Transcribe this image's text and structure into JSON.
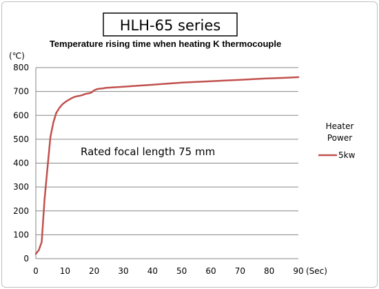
{
  "chart_data": {
    "type": "line",
    "title": "HLH-65 series",
    "subtitle": "Temperature rising time when heating K thermocouple",
    "xlabel": "(Sec)",
    "ylabel": "(℃)",
    "annotation": "Rated focal length 75 mm",
    "legend_title": [
      "Heater",
      "Power"
    ],
    "legend_position": "right",
    "grid": "horizontal",
    "xlim": [
      0,
      90
    ],
    "ylim": [
      0,
      800
    ],
    "xticks": [
      0,
      10,
      20,
      30,
      40,
      50,
      60,
      70,
      80,
      90
    ],
    "yticks": [
      0,
      100,
      200,
      300,
      400,
      500,
      600,
      700,
      800
    ],
    "series": [
      {
        "name": "5kw",
        "color": "#c0504d",
        "x": [
          0,
          1,
          2,
          3,
          4,
          5,
          6,
          7,
          8,
          9,
          10,
          11,
          12,
          13,
          14,
          15,
          16,
          17,
          18,
          19,
          20,
          21,
          22,
          23,
          24,
          25,
          30,
          35,
          40,
          45,
          50,
          55,
          60,
          65,
          70,
          75,
          80,
          85,
          90
        ],
        "y": [
          20,
          35,
          70,
          250,
          380,
          510,
          570,
          610,
          630,
          645,
          655,
          663,
          670,
          676,
          680,
          682,
          685,
          690,
          692,
          695,
          705,
          710,
          712,
          713,
          715,
          716,
          720,
          724,
          728,
          733,
          737,
          740,
          743,
          746,
          749,
          752,
          755,
          757,
          760
        ]
      }
    ]
  }
}
